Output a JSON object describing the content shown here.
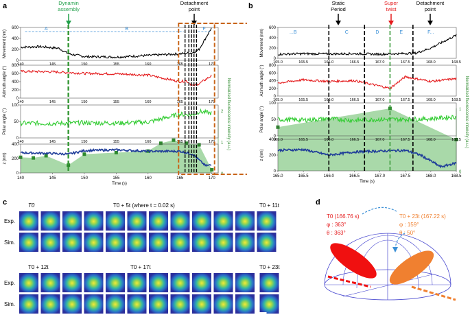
{
  "panel_labels": {
    "a": "a",
    "b": "b",
    "c": "c",
    "d": "d"
  },
  "annotations_a": {
    "dynamin": "Dynamin assembly",
    "detachment": "Detachment point",
    "phase_A": "A",
    "phase_B": "B",
    "phase_F": "F"
  },
  "annotations_b": {
    "static": "Static Period",
    "supertwist": "Super twist",
    "detachment": "Detachment point",
    "phase_B": "...B",
    "phase_C": "C",
    "phase_D": "D",
    "phase_E": "E",
    "phase_F": "F..."
  },
  "ylabels": {
    "movement": "Movement (nm)",
    "azimuth": "Azimuth angle (°)",
    "polar": "Polar angle (°)",
    "z": "z (nm)",
    "fluor": "Normalized fluorescence intensity (a.u.)"
  },
  "xlabel": "Time (s)",
  "chart_data": [
    {
      "type": "line",
      "panel": "a",
      "xlim": [
        140,
        171
      ],
      "xticks": [
        "140",
        "145",
        "150",
        "155",
        "160",
        "165",
        "170"
      ],
      "series": [
        {
          "name": "Movement",
          "color": "#000000",
          "ylim": [
            0,
            600
          ],
          "yticks": [
            "0",
            "200",
            "400",
            "600"
          ],
          "x": [
            140,
            143,
            146,
            147.5,
            150,
            155,
            160,
            165,
            167,
            168,
            169,
            170
          ],
          "y": [
            240,
            250,
            220,
            120,
            70,
            60,
            90,
            120,
            140,
            200,
            400,
            600
          ]
        },
        {
          "name": "Azimuth angle",
          "color": "#e41a1c",
          "ylim": [
            0,
            800
          ],
          "yticks": [
            "0",
            "200",
            "400",
            "600",
            "800"
          ],
          "x": [
            140,
            145,
            150,
            155,
            160,
            165,
            166,
            167,
            168,
            170
          ],
          "y": [
            650,
            640,
            600,
            590,
            560,
            400,
            420,
            300,
            350,
            550
          ]
        },
        {
          "name": "Polar angle",
          "color": "#33cc33",
          "ylim": [
            0,
            100
          ],
          "yticks": [
            "0",
            "50",
            "100"
          ],
          "x": [
            140,
            145,
            150,
            155,
            160,
            165,
            167,
            168,
            170
          ],
          "y": [
            45,
            44,
            46,
            45,
            48,
            72,
            70,
            80,
            75
          ]
        },
        {
          "name": "z",
          "color": "#1f3d99",
          "ylim": [
            0,
            400
          ],
          "yticks": [
            "0",
            "200",
            "400"
          ],
          "x": [
            140,
            145,
            147.5,
            150,
            155,
            160,
            165,
            167,
            168,
            169,
            170
          ],
          "y": [
            280,
            270,
            260,
            310,
            320,
            300,
            300,
            260,
            180,
            100,
            110
          ]
        },
        {
          "name": "Normalized fluorescence",
          "color": "#2d8a2d",
          "ylim": [
            0,
            2
          ],
          "yticks": [
            "0",
            "1",
            "2"
          ],
          "x": [
            140,
            142,
            144,
            147.5,
            150,
            155,
            160,
            162,
            164,
            166,
            168,
            170
          ],
          "y": [
            0.5,
            0.48,
            0.55,
            0.25,
            0.6,
            0.65,
            0.7,
            0.95,
            1.05,
            0.95,
            0.9,
            0.1
          ]
        }
      ]
    },
    {
      "type": "line",
      "panel": "b",
      "xlim": [
        165,
        168.5
      ],
      "xticks": [
        "165.0",
        "165.5",
        "166.0",
        "166.5",
        "167.0",
        "167.5",
        "168.0",
        "168.5"
      ],
      "series": [
        {
          "name": "Movement",
          "color": "#000000",
          "ylim": [
            0,
            600
          ],
          "yticks": [
            "0",
            "200",
            "400",
            "600"
          ],
          "x": [
            165,
            165.5,
            166,
            166.5,
            167,
            167.5,
            167.7,
            168,
            168.5
          ],
          "y": [
            80,
            90,
            85,
            90,
            80,
            95,
            100,
            200,
            450
          ]
        },
        {
          "name": "Azimuth angle",
          "color": "#e41a1c",
          "ylim": [
            0,
            800
          ],
          "yticks": [
            "0",
            "200",
            "400",
            "600",
            "800"
          ],
          "x": [
            165,
            165.5,
            166,
            166.5,
            167,
            167.2,
            167.5,
            168,
            168.5
          ],
          "y": [
            340,
            420,
            380,
            400,
            260,
            200,
            500,
            380,
            450
          ]
        },
        {
          "name": "Polar angle",
          "color": "#33cc33",
          "ylim": [
            0,
            100
          ],
          "yticks": [
            "0",
            "50",
            "100"
          ],
          "x": [
            165,
            165.5,
            166,
            166.5,
            167,
            167.5,
            168,
            168.5
          ],
          "y": [
            50,
            48,
            52,
            47,
            50,
            50,
            52,
            58
          ]
        },
        {
          "name": "z",
          "color": "#1f3d99",
          "ylim": [
            0,
            400
          ],
          "yticks": [
            "0",
            "200",
            "400"
          ],
          "x": [
            165,
            165.5,
            166,
            166.5,
            167,
            167.5,
            167.8,
            168.2,
            168.5
          ],
          "y": [
            260,
            270,
            200,
            240,
            250,
            260,
            200,
            50,
            100
          ]
        },
        {
          "name": "Normalized fluorescence",
          "color": "#2d8a2d",
          "ylim": [
            0,
            1
          ],
          "yticks": [
            "0",
            "1"
          ],
          "x": [
            165,
            167.2,
            168.5
          ],
          "y": [
            0.7,
            1.0,
            0.5
          ]
        }
      ]
    }
  ],
  "panel_c": {
    "top_labels": {
      "t0": "T0",
      "t5": "T0 + 5t (where t = 0.02 s)",
      "t11": "T0 + 11t"
    },
    "bottom_labels": {
      "t12": "T0 + 12t",
      "t17": "T0 + 17t",
      "t23": "T0 + 23t"
    },
    "row_labels": {
      "exp": "Exp.",
      "sim": "Sim."
    }
  },
  "panel_d": {
    "red_time": "T0 (166.76 s)",
    "red_phi": "φ : 363°",
    "red_theta": "θ : 363°",
    "orange_time": "T0 + 23t (167.22 s)",
    "orange_phi": "φ : 159°",
    "orange_theta": "θ : 50°"
  }
}
